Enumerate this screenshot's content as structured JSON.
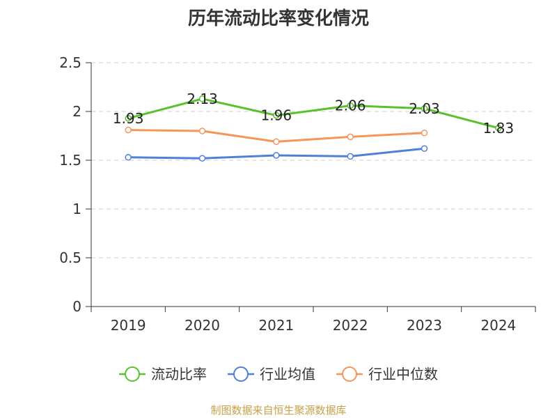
{
  "chart_data": {
    "type": "line",
    "title": "历年流动比率变化情况",
    "categories": [
      "2019",
      "2020",
      "2021",
      "2022",
      "2023",
      "2024"
    ],
    "series": [
      {
        "name": "流动比率",
        "values": [
          1.93,
          2.13,
          1.96,
          2.06,
          2.03,
          1.83
        ],
        "color": "#5ac12e",
        "labels": true
      },
      {
        "name": "行业均值",
        "values": [
          1.53,
          1.52,
          1.55,
          1.54,
          1.62,
          null
        ],
        "color": "#4f80d8",
        "labels": false
      },
      {
        "name": "行业中位数",
        "values": [
          1.81,
          1.8,
          1.69,
          1.74,
          1.78,
          null
        ],
        "color": "#f7945a",
        "labels": false
      }
    ],
    "ylim": [
      0,
      2.5
    ],
    "yticks": [
      "0",
      "0.5",
      "1",
      "1.5",
      "2",
      "2.5"
    ],
    "grid": true,
    "legend_position": "bottom"
  },
  "source": "制图数据来自恒生聚源数据库"
}
